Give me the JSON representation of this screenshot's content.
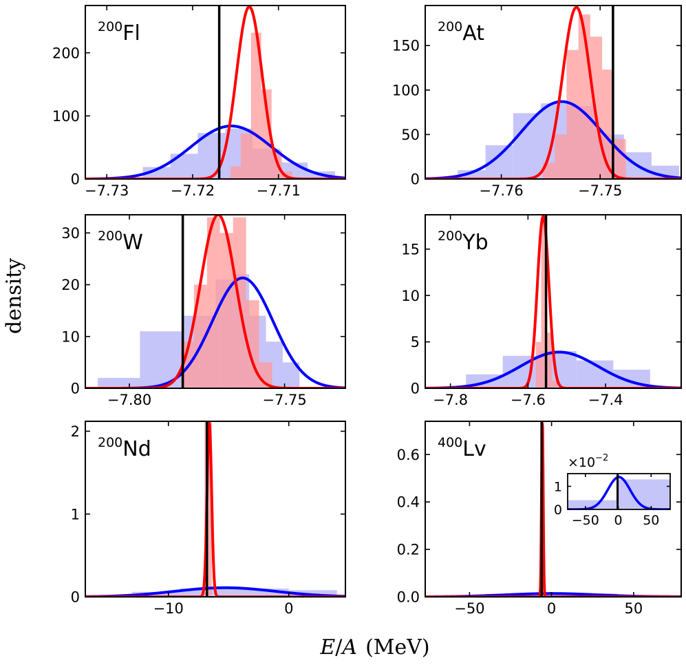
{
  "figure": {
    "ylabel": "density",
    "xlabel_var": "E",
    "xlabel_slash": "/",
    "xlabel_var2": "A",
    "xlabel_unit": "(MeV)"
  },
  "colors": {
    "red_line": "#ff0000",
    "blue_line": "#0000ff",
    "red_fill": "#ff9a9a",
    "blue_fill": "#b1b1f7",
    "black_line": "#000000"
  },
  "chart_data": [
    {
      "type": "histogram+density",
      "label_mass": "200",
      "label_elem": "Fl",
      "xlim": [
        -7.7325,
        -7.7022
      ],
      "ylim": [
        0,
        275
      ],
      "xticks": [
        -7.73,
        -7.72,
        -7.71
      ],
      "xtick_labels": [
        "−7.73",
        "−7.72",
        "−7.71"
      ],
      "yticks": [
        0,
        100,
        200
      ],
      "ytick_labels": [
        "0",
        "100",
        "200"
      ],
      "blue_hist": [
        [
          -7.729,
          -7.7258,
          3
        ],
        [
          -7.7258,
          -7.7226,
          19
        ],
        [
          -7.7226,
          -7.7194,
          40
        ],
        [
          -7.7194,
          -7.7162,
          73
        ],
        [
          -7.7162,
          -7.713,
          80
        ],
        [
          -7.713,
          -7.7098,
          48
        ],
        [
          -7.7098,
          -7.7066,
          26
        ],
        [
          -7.7066,
          -7.7034,
          12
        ]
      ],
      "red_hist": [
        [
          -7.7168,
          -7.7156,
          2
        ],
        [
          -7.7156,
          -7.7144,
          20
        ],
        [
          -7.7144,
          -7.7132,
          72
        ],
        [
          -7.7132,
          -7.712,
          232
        ],
        [
          -7.712,
          -7.7108,
          142
        ],
        [
          -7.7108,
          -7.7096,
          45
        ],
        [
          -7.7096,
          -7.7084,
          12
        ]
      ],
      "blue_gauss": {
        "mu": -7.7155,
        "sigma": 0.0047,
        "peak": 84
      },
      "red_gauss": {
        "mu": -7.7134,
        "sigma": 0.0015,
        "peak": 273
      },
      "vline": -7.7169,
      "inset": null
    },
    {
      "type": "histogram+density",
      "label_mass": "200",
      "label_elem": "At",
      "xlim": [
        -7.7677,
        -7.7418
      ],
      "ylim": [
        0,
        195
      ],
      "xticks": [
        -7.76,
        -7.75
      ],
      "xtick_labels": [
        "−7.76",
        "−7.75"
      ],
      "yticks": [
        0,
        50,
        100,
        150
      ],
      "ytick_labels": [
        "0",
        "50",
        "100",
        "150"
      ],
      "blue_hist": [
        [
          -7.7644,
          -7.7616,
          10
        ],
        [
          -7.7616,
          -7.7588,
          38
        ],
        [
          -7.7588,
          -7.756,
          74
        ],
        [
          -7.756,
          -7.7532,
          85
        ],
        [
          -7.7532,
          -7.7504,
          82
        ],
        [
          -7.7504,
          -7.7476,
          50
        ],
        [
          -7.7476,
          -7.7448,
          30
        ],
        [
          -7.7448,
          -7.742,
          15
        ]
      ],
      "red_hist": [
        [
          -7.7558,
          -7.7546,
          18
        ],
        [
          -7.7546,
          -7.7534,
          50
        ],
        [
          -7.7534,
          -7.7522,
          145
        ],
        [
          -7.7522,
          -7.751,
          185
        ],
        [
          -7.751,
          -7.7498,
          160
        ],
        [
          -7.7498,
          -7.7486,
          123
        ],
        [
          -7.7486,
          -7.7474,
          45
        ]
      ],
      "blue_gauss": {
        "mu": -7.7539,
        "sigma": 0.0041,
        "peak": 87
      },
      "red_gauss": {
        "mu": -7.7524,
        "sigma": 0.0014,
        "peak": 193
      },
      "vline": -7.7487,
      "inset": null
    },
    {
      "type": "histogram+density",
      "label_mass": "200",
      "label_elem": "W",
      "xlim": [
        -7.8142,
        -7.7304
      ],
      "ylim": [
        0,
        33.5
      ],
      "xticks": [
        -7.8,
        -7.75
      ],
      "xtick_labels": [
        "−7.80",
        "−7.75"
      ],
      "yticks": [
        0,
        10,
        20,
        30
      ],
      "ytick_labels": [
        "0",
        "10",
        "20",
        "30"
      ],
      "blue_hist": [
        [
          -7.8102,
          -7.7966,
          2
        ],
        [
          -7.7966,
          -7.783,
          11
        ],
        [
          -7.783,
          -7.7776,
          14
        ],
        [
          -7.7776,
          -7.7722,
          14
        ],
        [
          -7.7722,
          -7.7668,
          21
        ],
        [
          -7.7668,
          -7.7614,
          22
        ],
        [
          -7.7614,
          -7.756,
          14
        ],
        [
          -7.756,
          -7.7506,
          9
        ],
        [
          -7.7506,
          -7.7452,
          5
        ]
      ],
      "red_hist": [
        [
          -7.7834,
          -7.7792,
          9
        ],
        [
          -7.7792,
          -7.775,
          20
        ],
        [
          -7.775,
          -7.7708,
          33
        ],
        [
          -7.7708,
          -7.7666,
          30
        ],
        [
          -7.7666,
          -7.7624,
          33
        ],
        [
          -7.7624,
          -7.7582,
          17
        ],
        [
          -7.7582,
          -7.754,
          5
        ]
      ],
      "blue_gauss": {
        "mu": -7.7635,
        "sigma": 0.0098,
        "peak": 21.3
      },
      "red_gauss": {
        "mu": -7.7714,
        "sigma": 0.0057,
        "peak": 33.5
      },
      "vline": -7.7828,
      "inset": null
    },
    {
      "type": "histogram+density",
      "label_mass": "200",
      "label_elem": "Yb",
      "xlim": [
        -7.865,
        -7.205
      ],
      "ylim": [
        0,
        18.7
      ],
      "xticks": [
        -7.8,
        -7.6,
        -7.4
      ],
      "xtick_labels": [
        "−7.8",
        "−7.6",
        "−7.4"
      ],
      "yticks": [
        0,
        5,
        10,
        15
      ],
      "ytick_labels": [
        "0",
        "5",
        "10",
        "15"
      ],
      "blue_hist": [
        [
          -7.76,
          -7.665,
          1.5
        ],
        [
          -7.665,
          -7.57,
          3.5
        ],
        [
          -7.57,
          -7.475,
          4
        ],
        [
          -7.475,
          -7.38,
          3
        ],
        [
          -7.38,
          -7.285,
          2
        ]
      ],
      "red_hist": [
        [
          -7.58,
          -7.566,
          5
        ],
        [
          -7.566,
          -7.552,
          18.7
        ],
        [
          -7.552,
          -7.538,
          6
        ],
        [
          -7.538,
          -7.524,
          0.8
        ]
      ],
      "blue_gauss": {
        "mu": -7.5195,
        "sigma": 0.1,
        "peak": 3.9
      },
      "red_gauss": {
        "mu": -7.5609,
        "sigma": 0.0149,
        "peak": 18.5
      },
      "vline": -7.5535,
      "inset": null
    },
    {
      "type": "histogram+density",
      "label_mass": "200",
      "label_elem": "Nd",
      "xlim": [
        -16.9,
        4.7
      ],
      "ylim": [
        0,
        2.12
      ],
      "xticks": [
        -10,
        0
      ],
      "xtick_labels": [
        "−10",
        "0"
      ],
      "yticks": [
        0,
        1,
        2
      ],
      "ytick_labels": [
        "0",
        "1",
        "2"
      ],
      "blue_hist": [
        [
          -16.9,
          -13,
          0.02
        ],
        [
          -13,
          -9,
          0.06
        ],
        [
          -9,
          -5,
          0.1
        ],
        [
          -5,
          0,
          0.1
        ],
        [
          0,
          4,
          0.08
        ]
      ],
      "red_hist": [
        [
          -7,
          -6.4,
          2.12
        ]
      ],
      "blue_gauss": {
        "mu": -5.3,
        "sigma": 4.2,
        "peak": 0.11
      },
      "red_gauss": {
        "mu": -6.6,
        "sigma": 0.19,
        "peak": 2.1
      },
      "vline": -6.8,
      "inset": null
    },
    {
      "type": "histogram+density",
      "label_mass": "400",
      "label_elem": "Lv",
      "xlim": [
        -77,
        79
      ],
      "ylim": [
        0,
        0.74
      ],
      "xticks": [
        -50,
        0,
        50
      ],
      "xtick_labels": [
        "−50",
        "0",
        "50"
      ],
      "yticks": [
        0,
        0.2,
        0.4,
        0.6
      ],
      "ytick_labels": [
        "0.0",
        "0.2",
        "0.4",
        "0.6"
      ],
      "blue_hist": [
        [
          -77,
          -40,
          0.005
        ],
        [
          -40,
          0,
          0.013
        ],
        [
          0,
          40,
          0.014
        ],
        [
          40,
          79,
          0.008
        ]
      ],
      "red_hist": [
        [
          -7,
          -4.5,
          0.74
        ]
      ],
      "blue_gauss": {
        "mu": 0,
        "sigma": 28,
        "peak": 0.014
      },
      "red_gauss": {
        "mu": -5.6,
        "sigma": 0.5,
        "peak": 0.74
      },
      "vline": -6,
      "inset": {
        "scale_label": "×10",
        "scale_exp": "−2",
        "xlim": [
          -77,
          79
        ],
        "ylim": [
          0,
          1.55
        ],
        "xticks": [
          -50,
          0,
          50
        ],
        "xtick_labels": [
          "−50",
          "0",
          "50"
        ],
        "yticks": [
          0,
          1
        ],
        "ytick_labels": [
          "0",
          "1"
        ],
        "blue_hist": [
          [
            -77,
            -3,
            0.4
          ],
          [
            -3,
            79,
            1.3
          ]
        ],
        "blue_gauss": {
          "mu": 1,
          "sigma": 17,
          "peak": 1.4
        },
        "vline": -1
      }
    }
  ]
}
